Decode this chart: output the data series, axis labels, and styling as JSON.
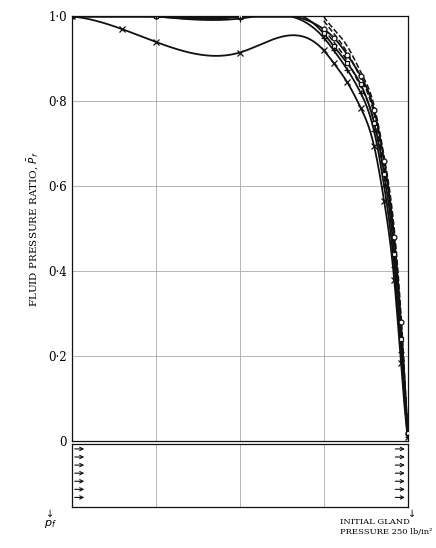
{
  "ylim": [
    0,
    1.0
  ],
  "xlim": [
    0,
    1.0
  ],
  "yticks": [
    0,
    0.2,
    0.4,
    0.6,
    0.8,
    1.0
  ],
  "ytick_labels": [
    "0",
    "0·2",
    "0·4",
    "0·6",
    "0·8",
    "1·0"
  ],
  "xticks": [
    0.0,
    0.25,
    0.5,
    0.75,
    1.0
  ],
  "grid_color": "#aaaaaa",
  "line_color": "#111111",
  "background_color": "#ffffff",
  "n_arrows": 7,
  "figsize": [
    4.36,
    5.48
  ],
  "dpi": 100,
  "curves": [
    {
      "name": "solid_circle",
      "x": [
        0.0,
        0.25,
        0.5,
        0.75,
        0.78,
        0.82,
        0.86,
        0.9,
        0.93,
        0.96,
        0.98,
        1.0
      ],
      "y": [
        1.0,
        1.0,
        1.0,
        0.97,
        0.95,
        0.91,
        0.86,
        0.78,
        0.66,
        0.48,
        0.28,
        0.02
      ],
      "style": "solid",
      "marker": "o",
      "lw": 1.3
    },
    {
      "name": "solid_square",
      "x": [
        0.0,
        0.25,
        0.5,
        0.75,
        0.78,
        0.82,
        0.86,
        0.9,
        0.93,
        0.96,
        0.98,
        1.0
      ],
      "y": [
        1.0,
        1.0,
        1.0,
        0.96,
        0.93,
        0.89,
        0.84,
        0.75,
        0.63,
        0.44,
        0.24,
        0.02
      ],
      "style": "solid",
      "marker": "s",
      "lw": 1.3
    },
    {
      "name": "solid_plus",
      "x": [
        0.0,
        0.25,
        0.5,
        0.75,
        0.78,
        0.82,
        0.86,
        0.9,
        0.93,
        0.96,
        0.98,
        1.0
      ],
      "y": [
        1.0,
        1.0,
        0.995,
        0.95,
        0.92,
        0.875,
        0.82,
        0.73,
        0.6,
        0.41,
        0.21,
        0.01
      ],
      "style": "solid",
      "marker": "+",
      "lw": 1.3
    },
    {
      "name": "solid_x",
      "x": [
        0.0,
        0.15,
        0.25,
        0.5,
        0.75,
        0.78,
        0.82,
        0.86,
        0.9,
        0.93,
        0.96,
        0.98,
        1.0
      ],
      "y": [
        1.0,
        0.97,
        0.94,
        0.915,
        0.92,
        0.89,
        0.845,
        0.785,
        0.695,
        0.565,
        0.38,
        0.185,
        0.01
      ],
      "style": "solid",
      "marker": "x",
      "lw": 1.3
    },
    {
      "name": "dashed_1",
      "x": [
        0.75,
        0.78,
        0.82,
        0.86,
        0.9,
        0.93,
        0.96,
        0.98,
        1.0
      ],
      "y": [
        1.0,
        0.97,
        0.93,
        0.87,
        0.79,
        0.67,
        0.5,
        0.3,
        0.02
      ],
      "style": "dashed",
      "marker": "none",
      "lw": 1.1
    },
    {
      "name": "dashed_2",
      "x": [
        0.75,
        0.78,
        0.82,
        0.86,
        0.9,
        0.93,
        0.96,
        0.98,
        1.0
      ],
      "y": [
        0.99,
        0.96,
        0.915,
        0.855,
        0.77,
        0.645,
        0.475,
        0.275,
        0.02
      ],
      "style": "dashed",
      "marker": "none",
      "lw": 1.1
    },
    {
      "name": "dashed_3",
      "x": [
        0.75,
        0.78,
        0.82,
        0.86,
        0.9,
        0.93,
        0.96,
        0.98,
        1.0
      ],
      "y": [
        0.97,
        0.94,
        0.895,
        0.835,
        0.75,
        0.625,
        0.455,
        0.255,
        0.02
      ],
      "style": "dashed",
      "marker": "none",
      "lw": 1.1
    }
  ]
}
